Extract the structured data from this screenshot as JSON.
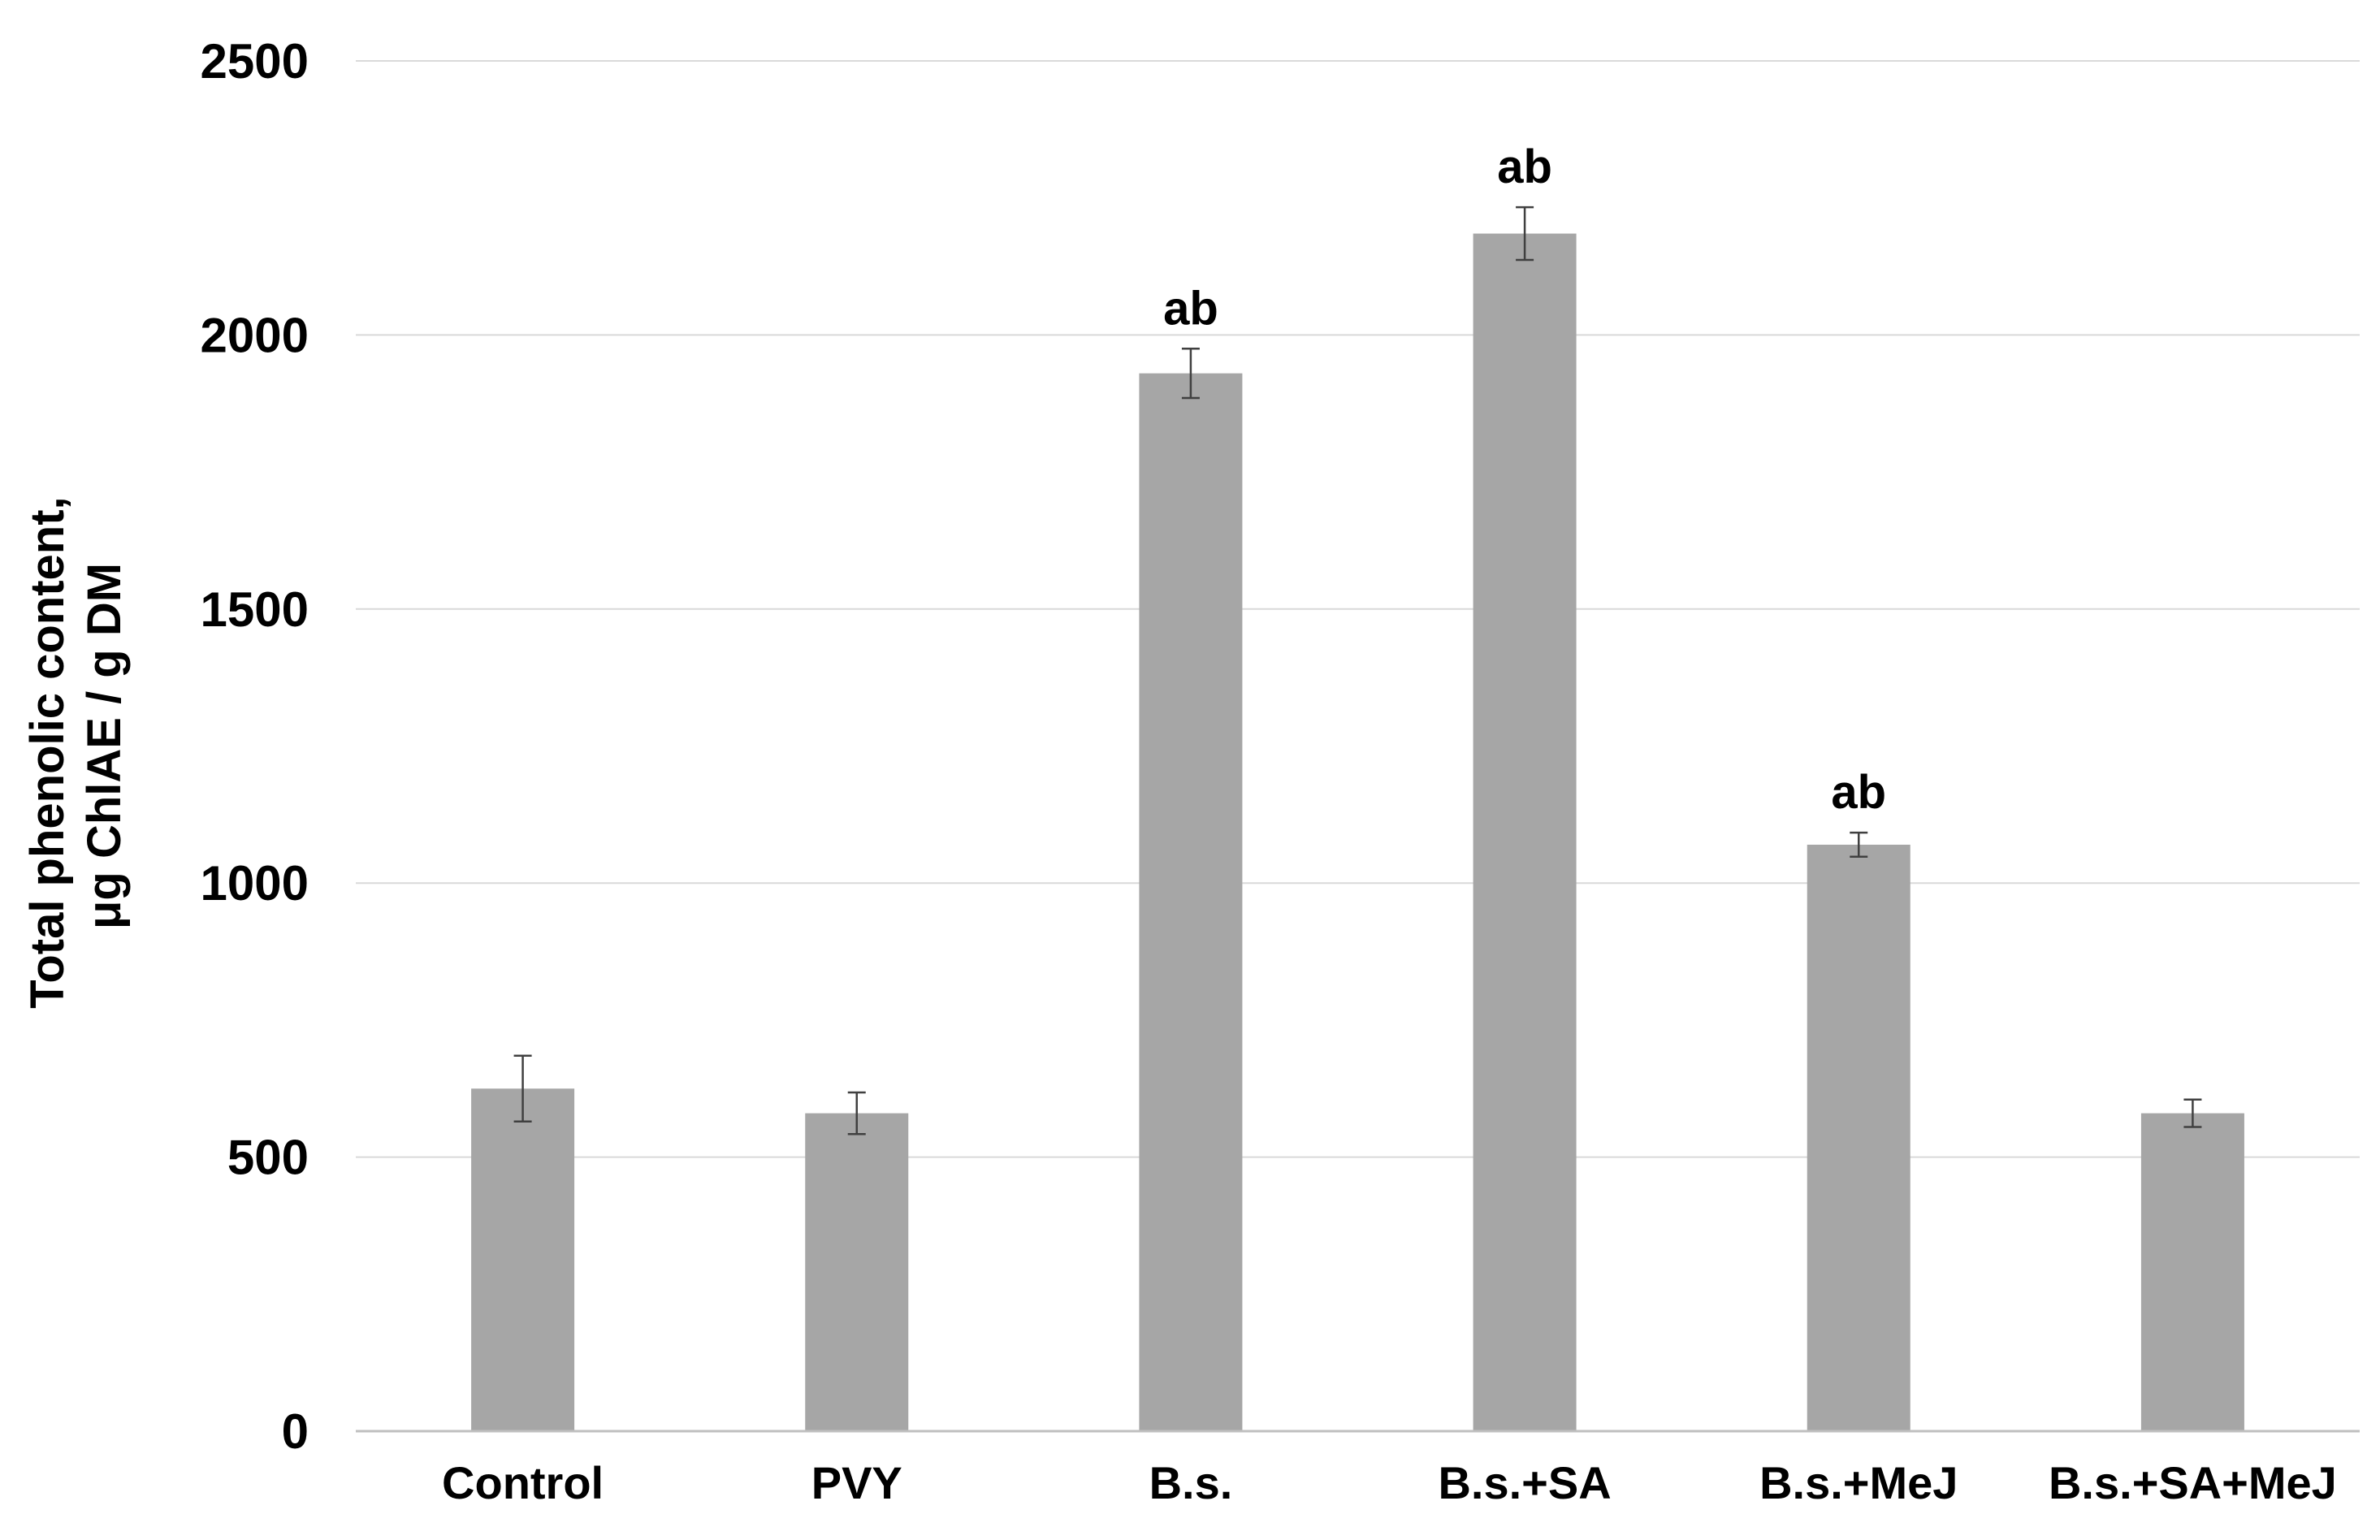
{
  "chart_data": {
    "type": "bar",
    "title": "",
    "xlabel": "",
    "ylabel_lines": [
      "Total phenolic content,",
      "μg ChlAE / g DM"
    ],
    "ylim": [
      0,
      2500
    ],
    "yticks": [
      0,
      500,
      1000,
      1500,
      2000,
      2500
    ],
    "grid": true,
    "categories": [
      "Control",
      "PVY",
      "B.s.",
      "B.s.+SA",
      "B.s.+MeJ",
      "B.s.+SA+MeJ"
    ],
    "values": [
      625,
      580,
      1930,
      2185,
      1070,
      580
    ],
    "errors": [
      60,
      38,
      45,
      48,
      22,
      25
    ],
    "annotations": [
      "",
      "",
      "ab",
      "ab",
      "ab",
      ""
    ],
    "colors": {
      "bar": "#a6a6a6",
      "grid": "#d9d9d9",
      "axis": "#bfbfbf",
      "error": "#404040"
    }
  }
}
